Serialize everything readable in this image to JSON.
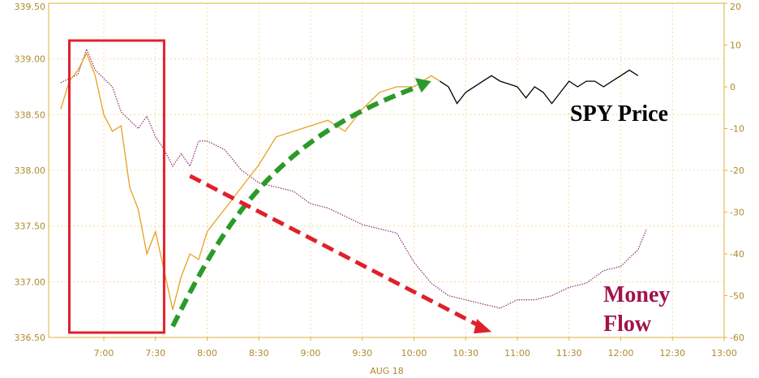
{
  "chart_data": {
    "type": "line",
    "title": "",
    "date_label": "AUG 18",
    "x_ticks": [
      "7:00",
      "7:30",
      "8:00",
      "8:30",
      "9:00",
      "9:30",
      "10:00",
      "10:30",
      "11:00",
      "11:30",
      "12:00",
      "12:30",
      "13:00"
    ],
    "y_left": {
      "label": "",
      "ticks": [
        "336.50",
        "337.00",
        "337.50",
        "338.00",
        "338.50",
        "339.00",
        "339.50"
      ],
      "range": [
        336.5,
        339.5
      ]
    },
    "y_right": {
      "label": "",
      "ticks": [
        "-60",
        "-50",
        "-40",
        "-30",
        "-20",
        "-10",
        "0",
        "10",
        "20"
      ],
      "range": [
        -60,
        20
      ]
    },
    "series": [
      {
        "name": "SPY Price",
        "axis": "left",
        "color_session_open": "#e8a020",
        "color_later": "#000000",
        "points": [
          [
            "6:35",
            338.55
          ],
          [
            "6:40",
            338.8
          ],
          [
            "6:45",
            338.9
          ],
          [
            "6:50",
            339.05
          ],
          [
            "6:55",
            338.85
          ],
          [
            "7:00",
            338.5
          ],
          [
            "7:05",
            338.35
          ],
          [
            "7:10",
            338.4
          ],
          [
            "7:15",
            337.85
          ],
          [
            "7:20",
            337.65
          ],
          [
            "7:25",
            337.25
          ],
          [
            "7:30",
            337.45
          ],
          [
            "7:35",
            337.1
          ],
          [
            "7:40",
            336.75
          ],
          [
            "7:45",
            337.05
          ],
          [
            "7:50",
            337.25
          ],
          [
            "7:55",
            337.2
          ],
          [
            "8:00",
            337.45
          ],
          [
            "8:10",
            337.65
          ],
          [
            "8:20",
            337.85
          ],
          [
            "8:30",
            338.05
          ],
          [
            "8:40",
            338.3
          ],
          [
            "8:50",
            338.35
          ],
          [
            "9:00",
            338.4
          ],
          [
            "9:10",
            338.45
          ],
          [
            "9:20",
            338.35
          ],
          [
            "9:30",
            338.55
          ],
          [
            "9:40",
            338.7
          ],
          [
            "9:50",
            338.75
          ],
          [
            "10:00",
            338.75
          ],
          [
            "10:10",
            338.85
          ],
          [
            "10:15",
            338.8
          ],
          [
            "10:20",
            338.75
          ],
          [
            "10:25",
            338.6
          ],
          [
            "10:30",
            338.7
          ],
          [
            "10:40",
            338.8
          ],
          [
            "10:45",
            338.85
          ],
          [
            "10:50",
            338.8
          ],
          [
            "11:00",
            338.75
          ],
          [
            "11:05",
            338.65
          ],
          [
            "11:10",
            338.75
          ],
          [
            "11:15",
            338.7
          ],
          [
            "11:20",
            338.6
          ],
          [
            "11:25",
            338.7
          ],
          [
            "11:30",
            338.8
          ],
          [
            "11:35",
            338.75
          ],
          [
            "11:40",
            338.8
          ],
          [
            "11:45",
            338.8
          ],
          [
            "11:50",
            338.75
          ],
          [
            "11:55",
            338.8
          ],
          [
            "12:00",
            338.85
          ],
          [
            "12:05",
            338.9
          ],
          [
            "12:10",
            338.85
          ]
        ]
      },
      {
        "name": "Money Flow",
        "axis": "right",
        "color": "#8a3068",
        "points": [
          [
            "6:35",
            1
          ],
          [
            "6:45",
            3
          ],
          [
            "6:50",
            9
          ],
          [
            "6:55",
            4
          ],
          [
            "7:00",
            2
          ],
          [
            "7:05",
            0
          ],
          [
            "7:10",
            -6
          ],
          [
            "7:15",
            -8
          ],
          [
            "7:20",
            -10
          ],
          [
            "7:25",
            -7
          ],
          [
            "7:30",
            -12
          ],
          [
            "7:35",
            -15
          ],
          [
            "7:40",
            -19
          ],
          [
            "7:45",
            -16
          ],
          [
            "7:50",
            -19
          ],
          [
            "7:55",
            -13
          ],
          [
            "8:00",
            -13
          ],
          [
            "8:10",
            -15
          ],
          [
            "8:20",
            -20
          ],
          [
            "8:30",
            -23
          ],
          [
            "8:40",
            -24
          ],
          [
            "8:50",
            -25
          ],
          [
            "9:00",
            -28
          ],
          [
            "9:10",
            -29
          ],
          [
            "9:20",
            -31
          ],
          [
            "9:30",
            -33
          ],
          [
            "9:40",
            -34
          ],
          [
            "9:50",
            -35
          ],
          [
            "10:00",
            -42
          ],
          [
            "10:10",
            -47
          ],
          [
            "10:20",
            -50
          ],
          [
            "10:30",
            -51
          ],
          [
            "10:40",
            -52
          ],
          [
            "10:50",
            -53
          ],
          [
            "11:00",
            -51
          ],
          [
            "11:10",
            -51
          ],
          [
            "11:20",
            -50
          ],
          [
            "11:30",
            -48
          ],
          [
            "11:40",
            -47
          ],
          [
            "11:50",
            -44
          ],
          [
            "12:00",
            -43
          ],
          [
            "12:05",
            -41
          ],
          [
            "12:10",
            -39
          ],
          [
            "12:15",
            -34
          ]
        ]
      }
    ],
    "annotations": {
      "spy_label": "SPY Price",
      "money_flow_label_line1": "Money",
      "money_flow_label_line2": "Flow",
      "highlight_box": {
        "from": "6:40",
        "to": "7:35"
      },
      "green_arrow": {
        "from": [
          "7:40",
          336.6
        ],
        "to": [
          "10:10",
          338.8
        ]
      },
      "red_arrow": {
        "from": [
          "7:50",
          337.95
        ],
        "to": [
          "10:45",
          336.55
        ]
      }
    },
    "grid": true,
    "legend": "none",
    "colors": {
      "spy_open": "#e8a020",
      "spy_later": "#000000",
      "money_flow": "#8a3068",
      "axis": "#e0b23a",
      "tick_text": "#b08a2e",
      "highlight_box": "#e0202a",
      "green_arrow": "#2a9a2a",
      "red_arrow": "#e0202a",
      "money_flow_label": "#a0144a"
    }
  }
}
